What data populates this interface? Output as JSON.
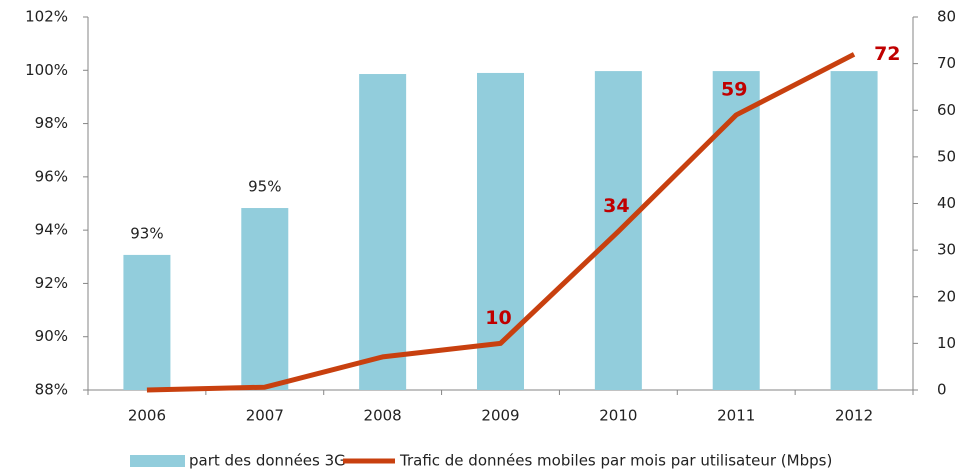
{
  "chart_data": {
    "type": "bar_line",
    "categories": [
      "2006",
      "2007",
      "2008",
      "2009",
      "2010",
      "2011",
      "2012"
    ],
    "series": [
      {
        "name": "part des données 3G",
        "type": "bar",
        "color": "#92cddc",
        "values": [
          93.07,
          94.83,
          99.86,
          99.9,
          99.97,
          99.97,
          99.97
        ],
        "value_labels": [
          "93%",
          "95%",
          null,
          null,
          null,
          null,
          null
        ]
      },
      {
        "name": "Trafic de données mobiles par mois par utilisateur (Mbps)",
        "type": "line",
        "axis": "y2",
        "color": "#c8400f",
        "label_color": "#c00000",
        "values": [
          0,
          0.6,
          7.1,
          10,
          34,
          59,
          72
        ],
        "value_labels": [
          null,
          null,
          null,
          "10",
          "34",
          "59",
          "72"
        ]
      }
    ],
    "ylim": [
      88,
      102
    ],
    "yticks": [
      {
        "value": 88,
        "label": "88%"
      },
      {
        "value": 90,
        "label": "90%"
      },
      {
        "value": 92,
        "label": "92%"
      },
      {
        "value": 94,
        "label": "94%"
      },
      {
        "value": 96,
        "label": "96%"
      },
      {
        "value": 98,
        "label": "98%"
      },
      {
        "value": 100,
        "label": "100%"
      },
      {
        "value": 102,
        "label": "102%"
      }
    ],
    "y2lim": [
      0,
      80
    ],
    "y2ticks": [
      0,
      10,
      20,
      30,
      40,
      50,
      60,
      70,
      80
    ],
    "grid": false,
    "legend": "bottom"
  }
}
